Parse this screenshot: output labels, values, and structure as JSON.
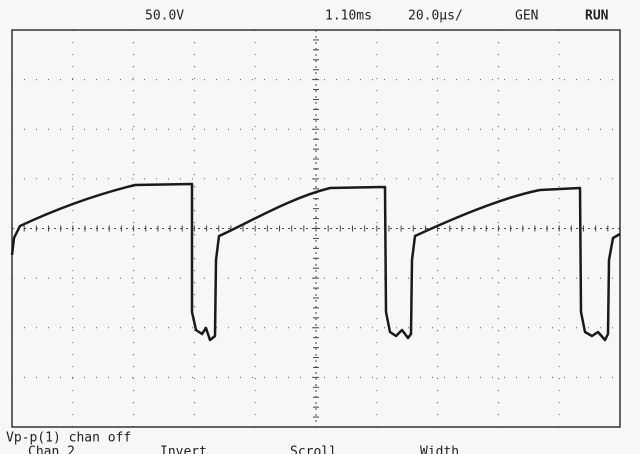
{
  "header": {
    "channel_scale": "50.0V",
    "trigger_delay": "1.10ms",
    "timebase": "20.0µs/",
    "mode": "GEN",
    "status": "RUN"
  },
  "footer": {
    "measurement": "Vp-p(1) chan off",
    "menu": [
      "Chan 2",
      "Invert",
      "Scroll",
      "Width"
    ]
  }
}
